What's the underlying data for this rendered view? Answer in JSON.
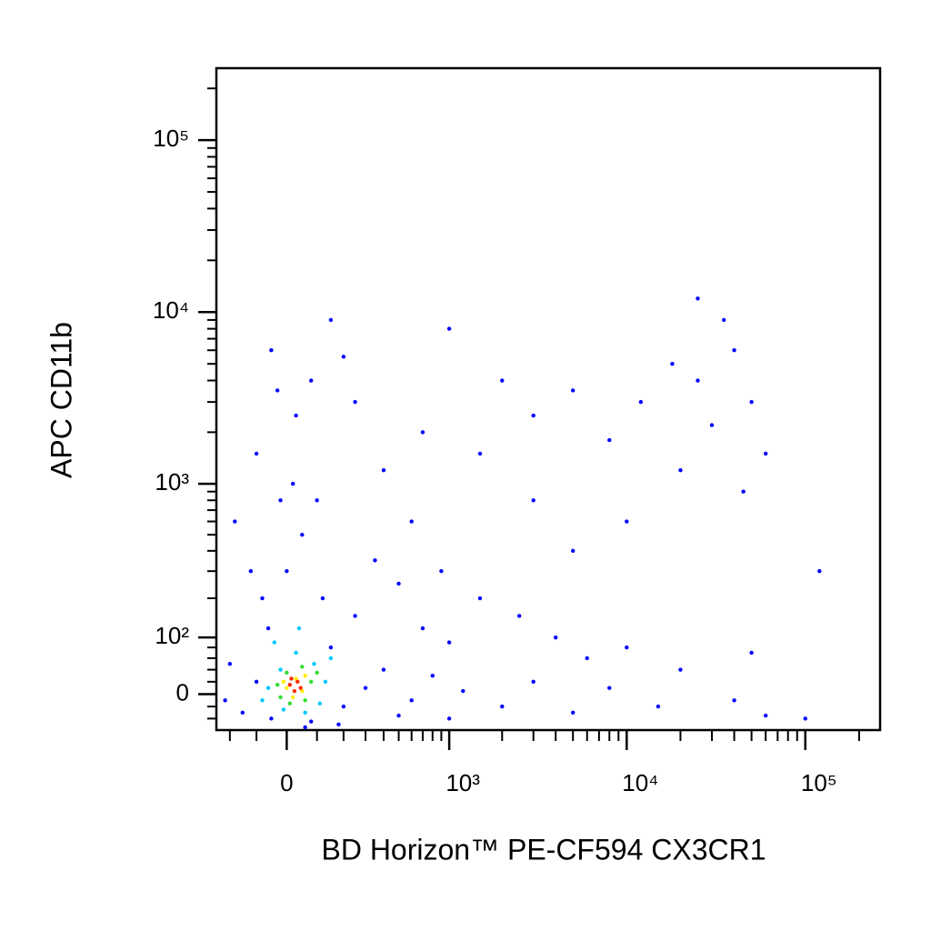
{
  "chart_data": {
    "type": "scatter",
    "xlabel": "BD Horizon™ PE-CF594 CX3CR1",
    "ylabel": "APC CD11b",
    "xscale": "biexponential",
    "yscale": "biexponential",
    "xlim": [
      -259,
      262144
    ],
    "ylim": [
      -60,
      262144
    ],
    "xticks": [
      0,
      {
        "value": 1000,
        "label": "10³"
      },
      {
        "value": 10000,
        "label": "10⁴"
      },
      {
        "value": 100000,
        "label": "10⁵"
      }
    ],
    "yticks": [
      0,
      {
        "value": 100,
        "label": "10²"
      },
      {
        "value": 1000,
        "label": "10³"
      },
      {
        "value": 10000,
        "label": "10⁴"
      },
      {
        "value": 100000,
        "label": "10⁵"
      }
    ],
    "xminorticks": [
      -200,
      -100,
      100,
      200,
      300,
      400,
      500,
      600,
      700,
      800,
      900,
      2000,
      3000,
      4000,
      5000,
      6000,
      7000,
      8000,
      9000,
      20000,
      30000,
      40000,
      50000,
      60000,
      70000,
      80000,
      90000,
      200000
    ],
    "yminorticks": [
      -40,
      -20,
      20,
      40,
      60,
      80,
      200,
      300,
      400,
      500,
      600,
      700,
      800,
      900,
      2000,
      3000,
      4000,
      5000,
      6000,
      7000,
      8000,
      9000,
      20000,
      30000,
      40000,
      50000,
      60000,
      70000,
      80000,
      90000,
      200000
    ],
    "series": [
      {
        "color": "#0000ff",
        "x": [
          -150,
          -100,
          -200,
          -50,
          80,
          200,
          300,
          150,
          400,
          600,
          800,
          1200,
          2000,
          3000,
          5000,
          8000,
          15000,
          40000,
          60000,
          100000,
          -80,
          0,
          50,
          100,
          -100,
          30,
          80,
          -50,
          150,
          250,
          400,
          600,
          900,
          1500,
          2500,
          4000,
          6000,
          10000,
          20000,
          50000,
          700,
          1500,
          3000,
          5000,
          8000,
          12000,
          18000,
          25000,
          30000,
          40000,
          50000,
          60000,
          35000,
          20000,
          45000,
          10000,
          5000,
          3000,
          2000,
          1000,
          -180,
          -120,
          -60,
          120,
          250,
          350,
          500,
          700,
          1000,
          -30,
          200,
          25000,
          120000,
          -220,
          60,
          180,
          500,
          1000,
          20,
          -20
        ],
        "values": [
          -30,
          20,
          50,
          -40,
          -45,
          -20,
          10,
          80,
          40,
          -10,
          30,
          5,
          -20,
          20,
          -30,
          10,
          -20,
          -10,
          -35,
          -40,
          200,
          300,
          500,
          800,
          1500,
          2500,
          4000,
          6000,
          9000,
          3000,
          1200,
          600,
          300,
          200,
          150,
          100,
          60,
          80,
          40,
          70,
          2000,
          1500,
          2500,
          3500,
          1800,
          3000,
          5000,
          4000,
          2200,
          6000,
          3000,
          1500,
          9000,
          1200,
          900,
          600,
          400,
          800,
          4000,
          8000,
          600,
          300,
          120,
          200,
          150,
          350,
          250,
          120,
          90,
          3500,
          5500,
          12000,
          300,
          -10,
          -55,
          -50,
          -35,
          -40,
          1000,
          800
        ]
      },
      {
        "color": "#00c8ff",
        "x": [
          -60,
          -20,
          30,
          90,
          130,
          110,
          60,
          -10,
          -80,
          150,
          40,
          -40
        ],
        "values": [
          10,
          40,
          70,
          50,
          20,
          -15,
          -30,
          -25,
          -10,
          60,
          120,
          90
        ]
      },
      {
        "color": "#33dd33",
        "x": [
          -30,
          0,
          50,
          80,
          60,
          10,
          -20,
          100
        ],
        "values": [
          15,
          35,
          45,
          20,
          -10,
          -15,
          -5,
          35
        ]
      },
      {
        "color": "#ffee00",
        "x": [
          0,
          30,
          60,
          20,
          50,
          -10
        ],
        "values": [
          10,
          25,
          30,
          -5,
          5,
          20
        ]
      },
      {
        "color": "#ff2a00",
        "x": [
          10,
          35,
          45,
          25,
          15
        ],
        "values": [
          15,
          20,
          10,
          5,
          25
        ]
      }
    ]
  }
}
